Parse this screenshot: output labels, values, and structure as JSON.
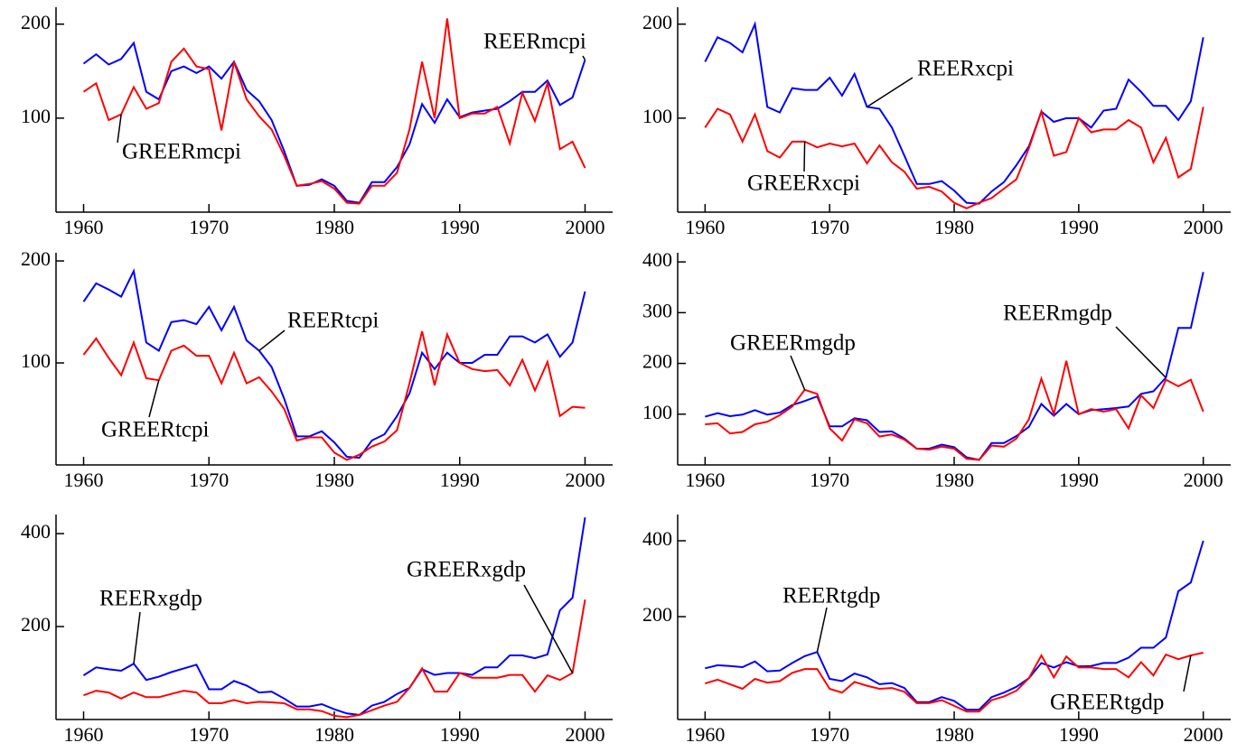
{
  "chart_data": [
    {
      "type": "line",
      "x": [
        1960,
        1961,
        1962,
        1963,
        1964,
        1965,
        1966,
        1967,
        1968,
        1969,
        1970,
        1971,
        1972,
        1973,
        1974,
        1975,
        1976,
        1977,
        1978,
        1979,
        1980,
        1981,
        1982,
        1983,
        1984,
        1985,
        1986,
        1987,
        1988,
        1989,
        1990,
        1991,
        1992,
        1993,
        1994,
        1995,
        1996,
        1997,
        1998,
        1999,
        2000
      ],
      "xlim": [
        1957.8,
        2002.2
      ],
      "xticks": [
        1960,
        1970,
        1980,
        1990,
        2000
      ],
      "ylim": [
        0,
        218
      ],
      "yticks": [
        100,
        200
      ],
      "series": [
        {
          "name": "REERmcpi",
          "color": "#0000ff",
          "values": [
            158,
            168,
            157,
            163,
            180,
            128,
            120,
            150,
            155,
            148,
            155,
            142,
            160,
            130,
            118,
            98,
            65,
            28,
            29,
            35,
            28,
            12,
            10,
            32,
            32,
            48,
            72,
            115,
            95,
            120,
            101,
            106,
            108,
            110,
            118,
            128,
            128,
            140,
            114,
            122,
            162
          ]
        },
        {
          "name": "GREERmcpi",
          "color": "#ff0000",
          "values": [
            128,
            137,
            98,
            104,
            133,
            110,
            116,
            160,
            174,
            155,
            152,
            87,
            160,
            120,
            102,
            88,
            60,
            28,
            30,
            33,
            25,
            10,
            9,
            28,
            28,
            42,
            88,
            160,
            100,
            206,
            100,
            105,
            105,
            112,
            73,
            127,
            97,
            137,
            67,
            75,
            47
          ]
        }
      ]
    },
    {
      "type": "line",
      "x": [
        1960,
        1961,
        1962,
        1963,
        1964,
        1965,
        1966,
        1967,
        1968,
        1969,
        1970,
        1971,
        1972,
        1973,
        1974,
        1975,
        1976,
        1977,
        1978,
        1979,
        1980,
        1981,
        1982,
        1983,
        1984,
        1985,
        1986,
        1987,
        1988,
        1989,
        1990,
        1991,
        1992,
        1993,
        1994,
        1995,
        1996,
        1997,
        1998,
        1999,
        2000
      ],
      "xlim": [
        1957.8,
        2002.2
      ],
      "xticks": [
        1960,
        1970,
        1980,
        1990,
        2000
      ],
      "ylim": [
        0,
        218
      ],
      "yticks": [
        100,
        200
      ],
      "series": [
        {
          "name": "REERxcpi",
          "color": "#0000ff",
          "values": [
            160,
            186,
            180,
            170,
            200,
            112,
            106,
            132,
            130,
            130,
            143,
            124,
            147,
            112,
            110,
            90,
            60,
            30,
            30,
            33,
            23,
            10,
            9,
            22,
            32,
            50,
            70,
            107,
            96,
            100,
            100,
            90,
            108,
            110,
            141,
            128,
            113,
            113,
            98,
            118,
            186
          ]
        },
        {
          "name": "GREERxcpi",
          "color": "#ff0000",
          "values": [
            90,
            110,
            104,
            75,
            104,
            65,
            58,
            75,
            75,
            69,
            73,
            70,
            73,
            52,
            71,
            53,
            43,
            25,
            27,
            22,
            10,
            4,
            10,
            15,
            25,
            35,
            68,
            107,
            60,
            64,
            100,
            85,
            88,
            88,
            98,
            90,
            53,
            79,
            37,
            46,
            112
          ]
        }
      ]
    },
    {
      "type": "line",
      "x": [
        1960,
        1961,
        1962,
        1963,
        1964,
        1965,
        1966,
        1967,
        1968,
        1969,
        1970,
        1971,
        1972,
        1973,
        1974,
        1975,
        1976,
        1977,
        1978,
        1979,
        1980,
        1981,
        1982,
        1983,
        1984,
        1985,
        1986,
        1987,
        1988,
        1989,
        1990,
        1991,
        1992,
        1993,
        1994,
        1995,
        1996,
        1997,
        1998,
        1999,
        2000
      ],
      "xlim": [
        1957.8,
        2002.2
      ],
      "xticks": [
        1960,
        1970,
        1980,
        1990,
        2000
      ],
      "ylim": [
        0,
        208
      ],
      "yticks": [
        100,
        200
      ],
      "series": [
        {
          "name": "REERtcpi",
          "color": "#0000ff",
          "values": [
            160,
            178,
            172,
            165,
            190,
            120,
            112,
            140,
            142,
            138,
            155,
            132,
            155,
            122,
            112,
            96,
            65,
            28,
            28,
            33,
            22,
            8,
            7,
            24,
            30,
            48,
            70,
            110,
            94,
            110,
            100,
            100,
            108,
            108,
            126,
            126,
            120,
            128,
            106,
            120,
            170
          ]
        },
        {
          "name": "GREERtcpi",
          "color": "#ff0000",
          "values": [
            108,
            124,
            105,
            88,
            120,
            85,
            83,
            112,
            117,
            107,
            107,
            80,
            110,
            80,
            86,
            72,
            55,
            24,
            27,
            27,
            12,
            5,
            10,
            18,
            23,
            34,
            80,
            131,
            78,
            128,
            100,
            94,
            92,
            93,
            78,
            103,
            73,
            101,
            48,
            57,
            56
          ]
        }
      ]
    },
    {
      "type": "line",
      "x": [
        1960,
        1961,
        1962,
        1963,
        1964,
        1965,
        1966,
        1967,
        1968,
        1969,
        1970,
        1971,
        1972,
        1973,
        1974,
        1975,
        1976,
        1977,
        1978,
        1979,
        1980,
        1981,
        1982,
        1983,
        1984,
        1985,
        1986,
        1987,
        1988,
        1989,
        1990,
        1991,
        1992,
        1993,
        1994,
        1995,
        1996,
        1997,
        1998,
        1999,
        2000
      ],
      "xlim": [
        1957.8,
        2002.2
      ],
      "xticks": [
        1960,
        1970,
        1980,
        1990,
        2000
      ],
      "ylim": [
        0,
        418
      ],
      "yticks": [
        100,
        200,
        300,
        400
      ],
      "series": [
        {
          "name": "REERmgdp",
          "color": "#0000ff",
          "values": [
            95,
            102,
            96,
            99,
            108,
            99,
            103,
            118,
            126,
            135,
            76,
            76,
            92,
            88,
            65,
            66,
            52,
            32,
            32,
            40,
            35,
            15,
            10,
            43,
            43,
            57,
            75,
            120,
            97,
            120,
            100,
            108,
            110,
            112,
            115,
            140,
            145,
            172,
            270,
            270,
            380
          ]
        },
        {
          "name": "GREERmgdp",
          "color": "#ff0000",
          "values": [
            80,
            82,
            62,
            65,
            80,
            85,
            98,
            115,
            148,
            140,
            72,
            48,
            90,
            82,
            56,
            60,
            50,
            32,
            30,
            36,
            32,
            12,
            10,
            38,
            36,
            52,
            90,
            170,
            100,
            205,
            100,
            110,
            105,
            110,
            72,
            137,
            112,
            168,
            155,
            168,
            105
          ]
        }
      ]
    },
    {
      "type": "line",
      "x": [
        1960,
        1961,
        1962,
        1963,
        1964,
        1965,
        1966,
        1967,
        1968,
        1969,
        1970,
        1971,
        1972,
        1973,
        1974,
        1975,
        1976,
        1977,
        1978,
        1979,
        1980,
        1981,
        1982,
        1983,
        1984,
        1985,
        1986,
        1987,
        1988,
        1989,
        1990,
        1991,
        1992,
        1993,
        1994,
        1995,
        1996,
        1997,
        1998,
        1999,
        2000
      ],
      "xlim": [
        1957.8,
        2002.2
      ],
      "xticks": [
        1960,
        1970,
        1980,
        1990,
        2000
      ],
      "ylim": [
        0,
        441
      ],
      "yticks": [
        200,
        400
      ],
      "series": [
        {
          "name": "REERxgdp",
          "color": "#0000ff",
          "values": [
            95,
            112,
            108,
            105,
            120,
            85,
            92,
            102,
            110,
            118,
            65,
            65,
            83,
            73,
            58,
            60,
            45,
            28,
            28,
            33,
            22,
            13,
            10,
            30,
            38,
            55,
            68,
            108,
            96,
            100,
            100,
            96,
            112,
            112,
            138,
            138,
            132,
            140,
            235,
            262,
            435
          ]
        },
        {
          "name": "GREERxgdp",
          "color": "#ff0000",
          "values": [
            52,
            62,
            58,
            45,
            58,
            48,
            48,
            55,
            62,
            58,
            35,
            35,
            42,
            35,
            38,
            37,
            35,
            22,
            22,
            18,
            8,
            5,
            10,
            20,
            30,
            38,
            68,
            110,
            60,
            60,
            100,
            90,
            90,
            90,
            96,
            96,
            60,
            95,
            85,
            100,
            258
          ]
        }
      ]
    },
    {
      "type": "line",
      "x": [
        1960,
        1961,
        1962,
        1963,
        1964,
        1965,
        1966,
        1967,
        1968,
        1969,
        1970,
        1971,
        1972,
        1973,
        1974,
        1975,
        1976,
        1977,
        1978,
        1979,
        1980,
        1981,
        1982,
        1983,
        1984,
        1985,
        1986,
        1987,
        1988,
        1989,
        1990,
        1991,
        1992,
        1993,
        1994,
        1995,
        1996,
        1997,
        1998,
        1999,
        2000
      ],
      "xlim": [
        1957.8,
        2002.2
      ],
      "xticks": [
        1960,
        1970,
        1980,
        1990,
        2000
      ],
      "ylim": [
        -71,
        469
      ],
      "yticks": [
        200,
        400
      ],
      "series": [
        {
          "name": "REERtgdp",
          "color": "#0000ff",
          "values": [
            64,
            72,
            70,
            67,
            82,
            56,
            58,
            78,
            96,
            107,
            36,
            30,
            50,
            40,
            22,
            25,
            12,
            -25,
            -25,
            -12,
            -22,
            -45,
            -45,
            -12,
            0,
            15,
            38,
            78,
            66,
            80,
            69,
            70,
            78,
            78,
            92,
            118,
            118,
            145,
            267,
            290,
            400
          ]
        },
        {
          "name": "GREERtgdp",
          "color": "#ff0000",
          "values": [
            24,
            34,
            22,
            10,
            36,
            26,
            30,
            52,
            62,
            62,
            10,
            0,
            28,
            18,
            10,
            12,
            2,
            -28,
            -28,
            -20,
            -35,
            -50,
            -50,
            -20,
            -10,
            5,
            38,
            98,
            40,
            95,
            66,
            66,
            62,
            62,
            40,
            80,
            45,
            100,
            88,
            98,
            105
          ]
        }
      ]
    }
  ]
}
